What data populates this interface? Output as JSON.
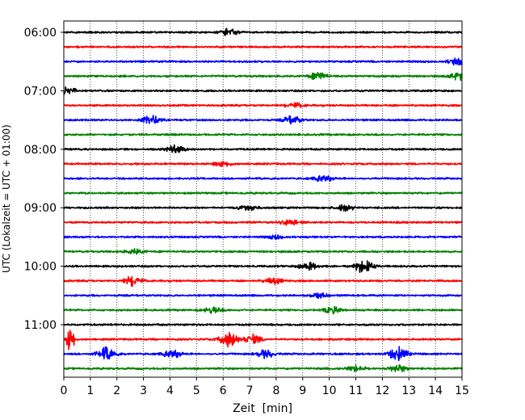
{
  "chart_data": {
    "type": "line",
    "title": "",
    "xlabel": "Zeit  [min]",
    "ylabel": "UTC (Lokalzeit = UTC + 01:00)",
    "xlim": [
      0,
      15
    ],
    "x_ticks": [
      "0",
      "1",
      "2",
      "3",
      "4",
      "5",
      "6",
      "7",
      "8",
      "9",
      "10",
      "11",
      "12",
      "13",
      "14",
      "15"
    ],
    "y_ticks": [
      {
        "label": "06:00",
        "row": 0
      },
      {
        "label": "07:00",
        "row": 4
      },
      {
        "label": "08:00",
        "row": 8
      },
      {
        "label": "09:00",
        "row": 12
      },
      {
        "label": "10:00",
        "row": 16
      },
      {
        "label": "11:00",
        "row": 20
      }
    ],
    "grid": "vertical-dotted",
    "trace_minutes": 15,
    "trace_colors": [
      "#000000",
      "#ff0000",
      "#0000ff",
      "#008000"
    ],
    "traces": [
      {
        "start": "06:00",
        "color": "#000000",
        "events": [
          {
            "t": 6.2,
            "amp": 0.4
          }
        ]
      },
      {
        "start": "06:15",
        "color": "#ff0000",
        "events": []
      },
      {
        "start": "06:30",
        "color": "#0000ff",
        "events": [
          {
            "t": 14.8,
            "amp": 0.4
          }
        ]
      },
      {
        "start": "06:45",
        "color": "#008000",
        "events": [
          {
            "t": 9.6,
            "amp": 0.5
          },
          {
            "t": 14.9,
            "amp": 0.5
          }
        ]
      },
      {
        "start": "07:00",
        "color": "#000000",
        "events": [
          {
            "t": 0.1,
            "amp": 0.5
          }
        ]
      },
      {
        "start": "07:15",
        "color": "#ff0000",
        "events": [
          {
            "t": 8.7,
            "amp": 0.3
          }
        ]
      },
      {
        "start": "07:30",
        "color": "#0000ff",
        "events": [
          {
            "t": 3.3,
            "amp": 0.5
          },
          {
            "t": 8.6,
            "amp": 0.5
          }
        ]
      },
      {
        "start": "07:45",
        "color": "#008000",
        "events": []
      },
      {
        "start": "08:00",
        "color": "#000000",
        "events": [
          {
            "t": 4.2,
            "amp": 0.5
          }
        ]
      },
      {
        "start": "08:15",
        "color": "#ff0000",
        "events": [
          {
            "t": 6.0,
            "amp": 0.3
          }
        ]
      },
      {
        "start": "08:30",
        "color": "#0000ff",
        "events": [
          {
            "t": 9.8,
            "amp": 0.4
          }
        ]
      },
      {
        "start": "08:45",
        "color": "#008000",
        "events": []
      },
      {
        "start": "09:00",
        "color": "#000000",
        "events": [
          {
            "t": 6.9,
            "amp": 0.4
          },
          {
            "t": 10.6,
            "amp": 0.4
          }
        ]
      },
      {
        "start": "09:15",
        "color": "#ff0000",
        "events": [
          {
            "t": 8.5,
            "amp": 0.3
          }
        ]
      },
      {
        "start": "09:30",
        "color": "#0000ff",
        "events": [
          {
            "t": 8.0,
            "amp": 0.2
          }
        ]
      },
      {
        "start": "09:45",
        "color": "#008000",
        "events": [
          {
            "t": 2.7,
            "amp": 0.3
          }
        ]
      },
      {
        "start": "10:00",
        "color": "#000000",
        "events": [
          {
            "t": 9.2,
            "amp": 0.5
          },
          {
            "t": 11.3,
            "amp": 0.9
          }
        ]
      },
      {
        "start": "10:15",
        "color": "#ff0000",
        "events": [
          {
            "t": 2.6,
            "amp": 0.6
          },
          {
            "t": 7.9,
            "amp": 0.4
          }
        ]
      },
      {
        "start": "10:30",
        "color": "#0000ff",
        "events": [
          {
            "t": 9.6,
            "amp": 0.3
          }
        ]
      },
      {
        "start": "10:45",
        "color": "#008000",
        "events": [
          {
            "t": 5.6,
            "amp": 0.4
          },
          {
            "t": 10.1,
            "amp": 0.4
          }
        ]
      },
      {
        "start": "11:00",
        "color": "#000000",
        "events": []
      },
      {
        "start": "11:15",
        "color": "#ff0000",
        "events": [
          {
            "t": 0.25,
            "amp": 2.2
          },
          {
            "t": 6.2,
            "amp": 0.9
          },
          {
            "t": 7.1,
            "amp": 0.6
          }
        ]
      },
      {
        "start": "11:30",
        "color": "#0000ff",
        "events": [
          {
            "t": 1.6,
            "amp": 0.8
          },
          {
            "t": 4.1,
            "amp": 0.5
          },
          {
            "t": 7.6,
            "amp": 0.5
          },
          {
            "t": 12.6,
            "amp": 0.9
          }
        ]
      },
      {
        "start": "11:45",
        "color": "#008000",
        "events": [
          {
            "t": 11.0,
            "amp": 0.4
          },
          {
            "t": 12.6,
            "amp": 0.4
          }
        ]
      }
    ]
  }
}
